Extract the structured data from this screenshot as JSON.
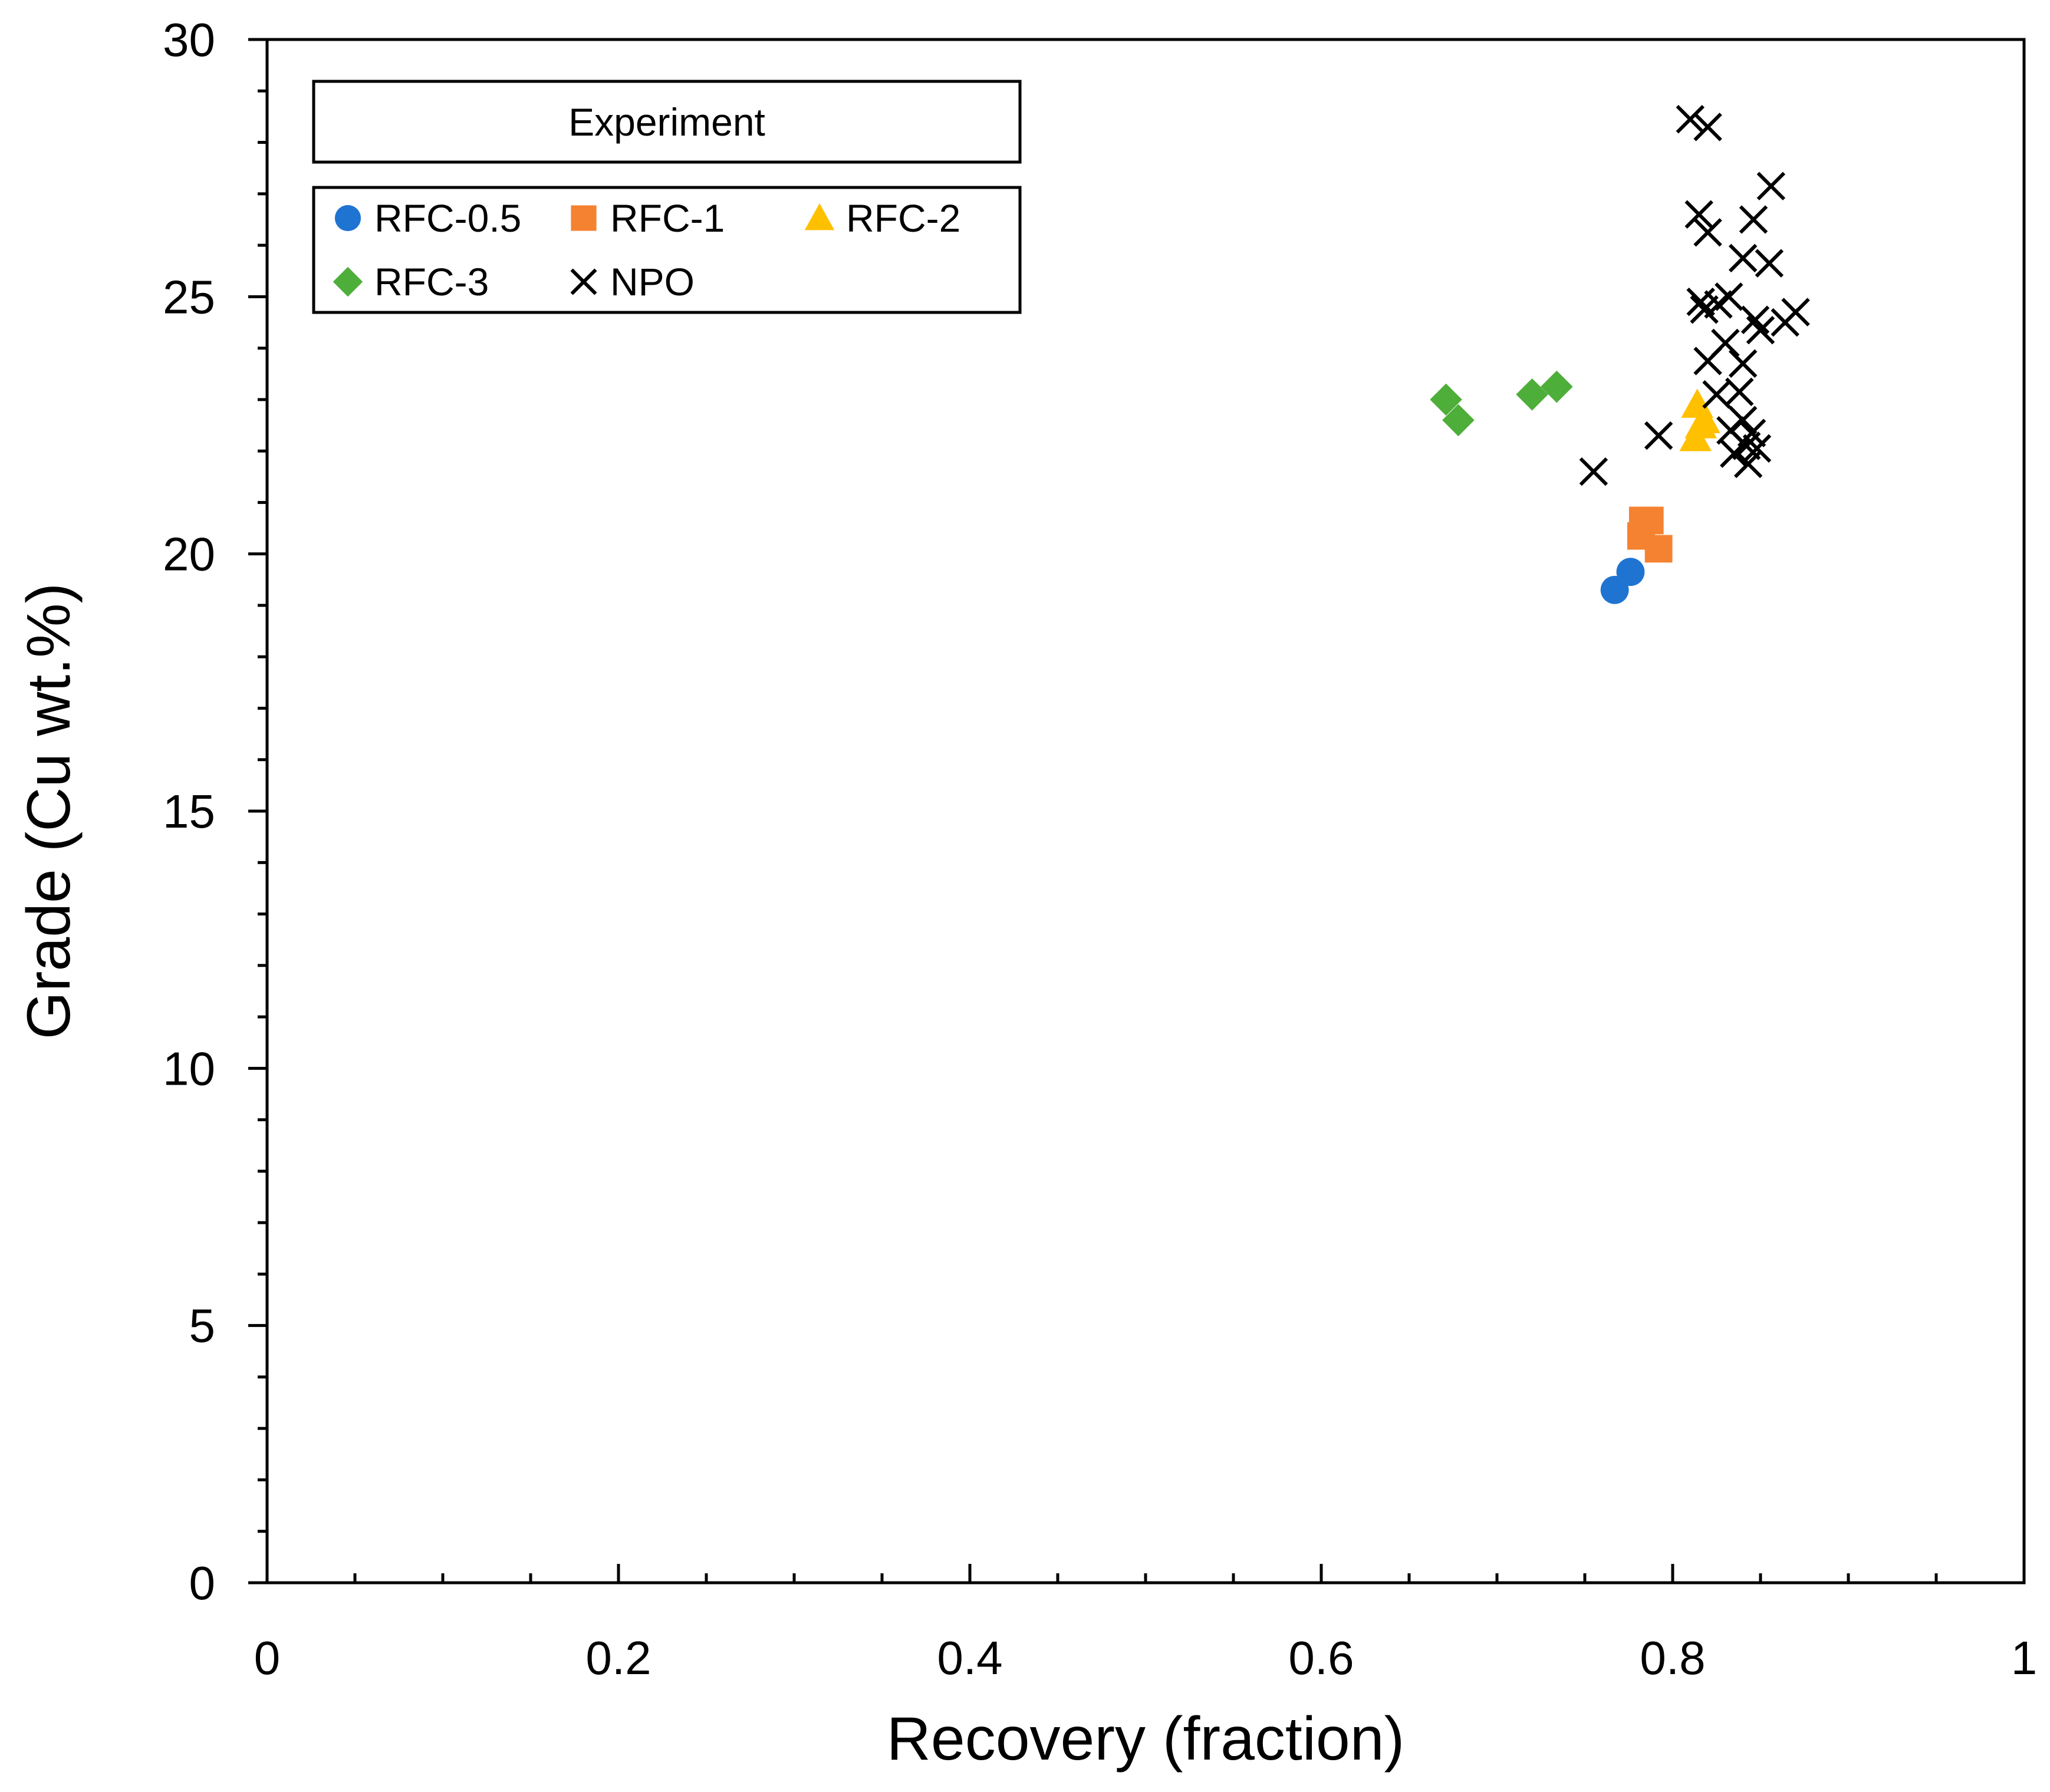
{
  "chart_data": {
    "type": "scatter",
    "title": "",
    "xlabel": "Recovery (fraction)",
    "ylabel": "Grade (Cu wt.%)",
    "xlim": [
      0,
      1
    ],
    "ylim": [
      0,
      30
    ],
    "x_ticks": [
      "0",
      "0.2",
      "0.4",
      "0.6",
      "0.8",
      "1"
    ],
    "y_ticks": [
      "0",
      "5",
      "10",
      "15",
      "20",
      "25",
      "30"
    ],
    "grid": false,
    "legend": {
      "title": "Experiment",
      "placement": "top-left",
      "columns": 3
    },
    "series": [
      {
        "name": "RFC-0.5",
        "marker": "circle",
        "color": "#1F74D1",
        "points": [
          [
            0.767,
            19.3
          ],
          [
            0.776,
            19.65
          ]
        ]
      },
      {
        "name": "RFC-1",
        "marker": "square",
        "color": "#F58231",
        "points": [
          [
            0.783,
            20.65
          ],
          [
            0.787,
            20.65
          ],
          [
            0.782,
            20.35
          ],
          [
            0.792,
            20.1
          ]
        ]
      },
      {
        "name": "RFC-2",
        "marker": "triangle",
        "color": "#FFC000",
        "points": [
          [
            0.814,
            22.9
          ],
          [
            0.818,
            22.6
          ],
          [
            0.816,
            22.5
          ],
          [
            0.813,
            22.25
          ]
        ]
      },
      {
        "name": "RFC-3",
        "marker": "diamond",
        "color": "#4EAE3A",
        "points": [
          [
            0.671,
            23.0
          ],
          [
            0.678,
            22.6
          ],
          [
            0.72,
            23.1
          ],
          [
            0.734,
            23.25
          ]
        ]
      },
      {
        "name": "NPO",
        "marker": "x",
        "color": "#000000",
        "points": [
          [
            0.81,
            28.45
          ],
          [
            0.82,
            28.3
          ],
          [
            0.856,
            27.15
          ],
          [
            0.815,
            26.6
          ],
          [
            0.846,
            26.5
          ],
          [
            0.82,
            26.25
          ],
          [
            0.84,
            25.75
          ],
          [
            0.855,
            25.65
          ],
          [
            0.832,
            25.0
          ],
          [
            0.816,
            24.9
          ],
          [
            0.826,
            24.85
          ],
          [
            0.818,
            24.75
          ],
          [
            0.87,
            24.7
          ],
          [
            0.847,
            24.55
          ],
          [
            0.864,
            24.5
          ],
          [
            0.85,
            24.35
          ],
          [
            0.83,
            24.1
          ],
          [
            0.82,
            23.75
          ],
          [
            0.84,
            23.7
          ],
          [
            0.825,
            23.1
          ],
          [
            0.838,
            23.15
          ],
          [
            0.84,
            22.6
          ],
          [
            0.833,
            22.4
          ],
          [
            0.845,
            22.35
          ],
          [
            0.792,
            22.3
          ],
          [
            0.842,
            22.1
          ],
          [
            0.848,
            22.05
          ],
          [
            0.835,
            21.95
          ],
          [
            0.843,
            21.75
          ],
          [
            0.755,
            21.6
          ]
        ]
      }
    ]
  }
}
